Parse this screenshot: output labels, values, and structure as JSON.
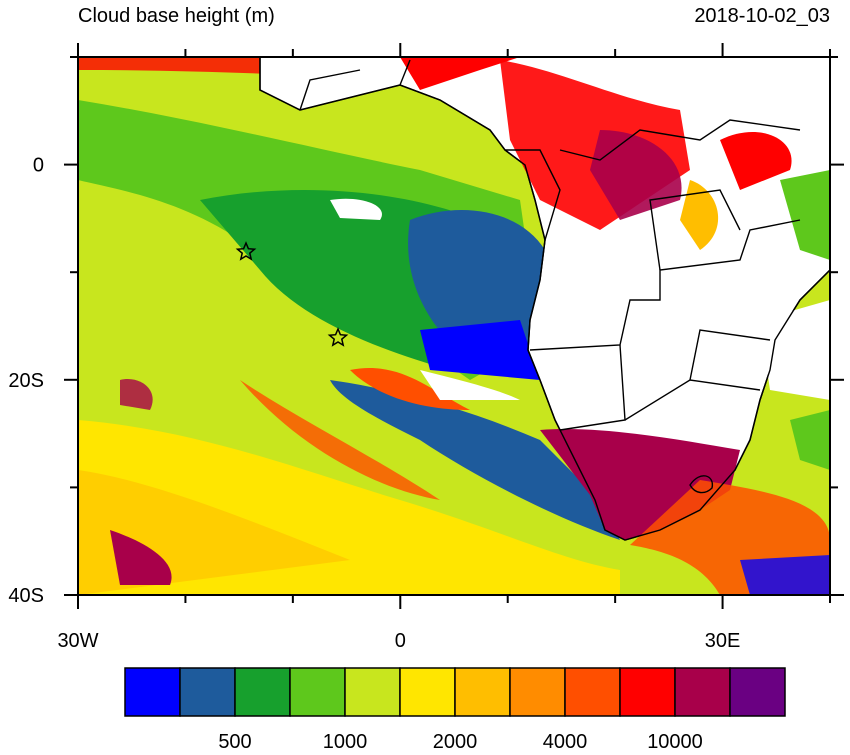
{
  "header": {
    "title": "Cloud base height (m)",
    "timestamp": "2018-10-02_03"
  },
  "axes": {
    "y_labels": [
      "0",
      "20S",
      "40S"
    ],
    "x_labels": [
      "30W",
      "0",
      "30E"
    ]
  },
  "colorbar": {
    "colors": [
      "#0000ff",
      "#1e5b9c",
      "#17a02d",
      "#5ec81c",
      "#c8e61e",
      "#ffe600",
      "#ffbe00",
      "#ff8c00",
      "#ff4f00",
      "#ff0000",
      "#a8004a",
      "#6a0082"
    ],
    "labels": [
      500,
      1000,
      2000,
      4000,
      10000
    ]
  }
}
